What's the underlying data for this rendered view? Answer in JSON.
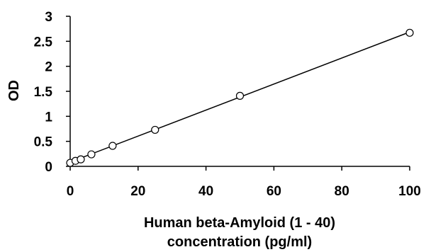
{
  "chart_data": {
    "type": "scatter",
    "title": "",
    "xlabel": [
      "Human beta-Amyloid (1 - 40)",
      "concentration (pg/ml)"
    ],
    "ylabel": "OD",
    "xlim": [
      0,
      100
    ],
    "ylim": [
      0,
      3
    ],
    "xticks": [
      "0",
      "20",
      "40",
      "60",
      "80",
      "100"
    ],
    "yticks": [
      "0",
      "0.5",
      "1",
      "1.5",
      "2",
      "2.5",
      "3"
    ],
    "grid": false,
    "legend": "none",
    "series": [
      {
        "marker": "open-circle",
        "x": [
          0,
          1.56,
          3.13,
          6.25,
          12.5,
          25,
          50,
          100
        ],
        "y": [
          0.07,
          0.11,
          0.14,
          0.24,
          0.41,
          0.73,
          1.41,
          2.67
        ]
      }
    ],
    "fit_line": {
      "x": [
        0,
        100
      ],
      "y": [
        0.085,
        2.685
      ]
    },
    "colors": {
      "marker": "#000000",
      "line": "#000000",
      "axis": "#000000"
    }
  }
}
